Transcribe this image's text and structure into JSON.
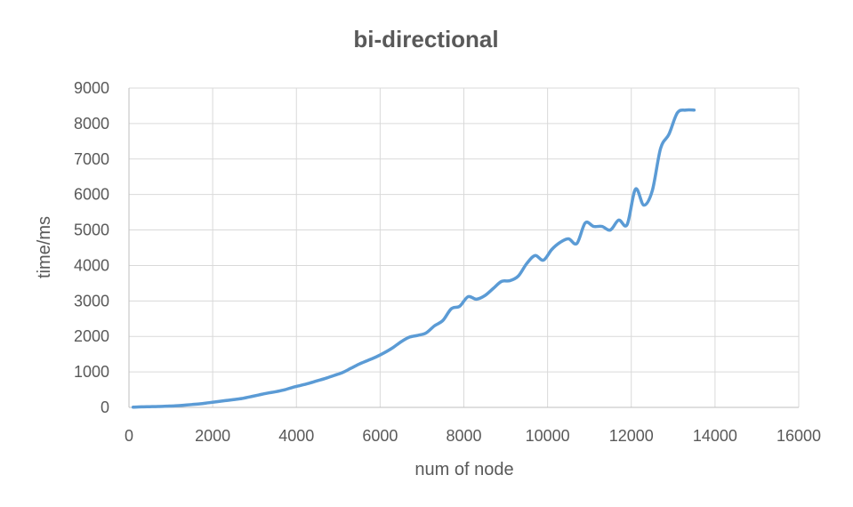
{
  "chart_data": {
    "type": "line",
    "title": "bi-directional",
    "xlabel": "num of node",
    "ylabel": "time/ms",
    "xlim": [
      0,
      16000
    ],
    "ylim": [
      0,
      9000
    ],
    "xticks": [
      0,
      2000,
      4000,
      6000,
      8000,
      10000,
      12000,
      14000,
      16000
    ],
    "yticks": [
      0,
      1000,
      2000,
      3000,
      4000,
      5000,
      6000,
      7000,
      8000,
      9000
    ],
    "grid": true,
    "legend": "none",
    "series": [
      {
        "color": "#5b9bd5",
        "x": [
          100,
          300,
          500,
          700,
          900,
          1100,
          1300,
          1500,
          1700,
          1900,
          2100,
          2300,
          2500,
          2700,
          2900,
          3100,
          3300,
          3500,
          3700,
          3900,
          4100,
          4300,
          4500,
          4700,
          4900,
          5100,
          5300,
          5500,
          5700,
          5900,
          6100,
          6300,
          6500,
          6700,
          6900,
          7100,
          7300,
          7500,
          7700,
          7900,
          8100,
          8300,
          8500,
          8700,
          8900,
          9100,
          9300,
          9500,
          9700,
          9900,
          10100,
          10300,
          10500,
          10700,
          10900,
          11100,
          11300,
          11500,
          11700,
          11900,
          12100,
          12300,
          12500,
          12700,
          12900,
          13100,
          13300,
          13500
        ],
        "y": [
          5,
          15,
          20,
          25,
          35,
          45,
          60,
          80,
          100,
          130,
          160,
          190,
          220,
          250,
          300,
          350,
          400,
          440,
          490,
          560,
          620,
          680,
          750,
          820,
          900,
          980,
          1100,
          1220,
          1320,
          1420,
          1540,
          1680,
          1850,
          1980,
          2030,
          2100,
          2300,
          2450,
          2780,
          2850,
          3120,
          3050,
          3150,
          3350,
          3550,
          3570,
          3700,
          4050,
          4280,
          4150,
          4450,
          4650,
          4750,
          4620,
          5200,
          5100,
          5100,
          5000,
          5280,
          5150,
          6150,
          5700,
          6100,
          7300,
          7700,
          8300,
          8380,
          8380
        ]
      }
    ]
  }
}
